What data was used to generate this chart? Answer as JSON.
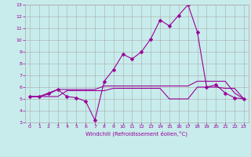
{
  "xlabel": "Windchill (Refroidissement éolien,°C)",
  "bg_color": "#c8ecec",
  "line_color": "#990099",
  "grid_color": "#aaaaaa",
  "xlim": [
    -0.5,
    23.5
  ],
  "ylim": [
    3,
    13
  ],
  "xticks": [
    0,
    1,
    2,
    3,
    4,
    5,
    6,
    7,
    8,
    9,
    10,
    11,
    12,
    13,
    14,
    15,
    16,
    17,
    18,
    19,
    20,
    21,
    22,
    23
  ],
  "yticks": [
    3,
    4,
    5,
    6,
    7,
    8,
    9,
    10,
    11,
    12,
    13
  ],
  "series1_x": [
    0,
    1,
    2,
    3,
    4,
    5,
    6,
    7,
    8,
    9,
    10,
    11,
    12,
    13,
    14,
    15,
    16,
    17,
    18,
    19,
    20,
    21,
    22,
    23
  ],
  "series1_y": [
    5.2,
    5.2,
    5.5,
    5.8,
    5.2,
    5.1,
    4.8,
    3.2,
    6.5,
    7.5,
    8.8,
    8.4,
    9.0,
    10.1,
    11.7,
    11.2,
    12.1,
    13.0,
    10.7,
    6.0,
    6.2,
    5.5,
    5.1,
    5.0
  ],
  "series2_x": [
    0,
    1,
    2,
    3,
    4,
    5,
    6,
    7,
    8,
    9,
    10,
    11,
    12,
    13,
    14,
    15,
    16,
    17,
    18,
    19,
    20,
    21,
    22,
    23
  ],
  "series2_y": [
    5.2,
    5.2,
    5.2,
    5.2,
    5.7,
    5.7,
    5.7,
    5.7,
    5.7,
    5.9,
    5.9,
    5.9,
    5.9,
    5.9,
    5.9,
    5.0,
    5.0,
    5.0,
    6.0,
    6.0,
    6.0,
    5.9,
    5.9,
    5.0
  ],
  "series3_x": [
    0,
    1,
    2,
    3,
    4,
    5,
    6,
    7,
    8,
    9,
    10,
    11,
    12,
    13,
    14,
    15,
    16,
    17,
    18,
    19,
    20,
    21,
    22,
    23
  ],
  "series3_y": [
    5.2,
    5.2,
    5.4,
    5.8,
    5.8,
    5.8,
    5.8,
    5.8,
    6.1,
    6.1,
    6.1,
    6.1,
    6.1,
    6.1,
    6.1,
    6.1,
    6.1,
    6.1,
    6.5,
    6.5,
    6.5,
    6.5,
    5.5,
    5.0
  ],
  "tick_fontsize": 4.5,
  "xlabel_fontsize": 5.0,
  "marker_size": 2.5
}
